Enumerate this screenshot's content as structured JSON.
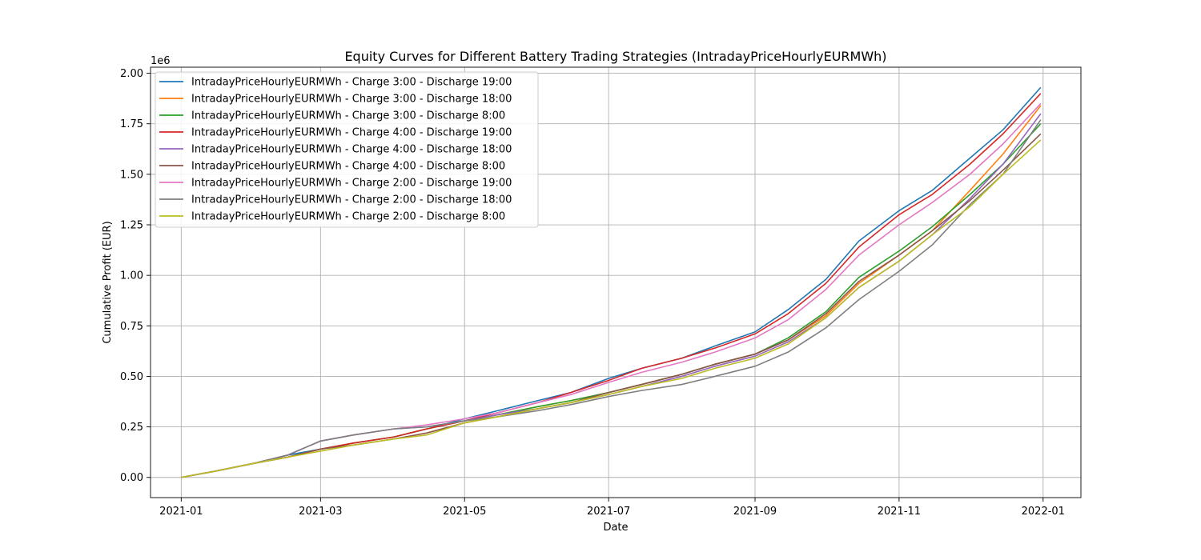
{
  "chart_data": {
    "type": "line",
    "title": "Equity Curves for Different Battery Trading Strategies (IntradayPriceHourlyEURMWh)",
    "xlabel": "Date",
    "ylabel": "Cumulative Profit (EUR)",
    "y_multiplier": "1e6",
    "xlim": [
      "2020-12-19",
      "2022-01-17"
    ],
    "ylim": [
      -0.1,
      2.03
    ],
    "x_ticks": [
      "2021-01",
      "2021-03",
      "2021-05",
      "2021-07",
      "2021-09",
      "2021-11",
      "2022-01"
    ],
    "y_ticks": [
      "0.00",
      "0.25",
      "0.50",
      "0.75",
      "1.00",
      "1.25",
      "1.50",
      "1.75",
      "2.00"
    ],
    "grid": true,
    "legend_position": "top-left",
    "x": [
      "2021-01-01",
      "2021-01-15",
      "2021-02-01",
      "2021-02-15",
      "2021-03-01",
      "2021-03-15",
      "2021-04-01",
      "2021-04-15",
      "2021-05-01",
      "2021-05-15",
      "2021-06-01",
      "2021-06-15",
      "2021-07-01",
      "2021-07-15",
      "2021-08-01",
      "2021-08-15",
      "2021-09-01",
      "2021-09-15",
      "2021-10-01",
      "2021-10-15",
      "2021-11-01",
      "2021-11-15",
      "2021-12-01",
      "2021-12-15",
      "2021-12-31"
    ],
    "series": [
      {
        "name": "IntradayPriceHourlyEURMWh - Charge 3:00 - Discharge 19:00",
        "color": "#1f77b4",
        "values": [
          0,
          0.03,
          0.07,
          0.11,
          0.14,
          0.17,
          0.2,
          0.24,
          0.29,
          0.33,
          0.38,
          0.42,
          0.49,
          0.54,
          0.59,
          0.65,
          0.72,
          0.83,
          0.98,
          1.17,
          1.32,
          1.42,
          1.58,
          1.72,
          1.93
        ]
      },
      {
        "name": "IntradayPriceHourlyEURMWh - Charge 3:00 - Discharge 18:00",
        "color": "#ff7f0e",
        "values": [
          0,
          0.03,
          0.07,
          0.1,
          0.14,
          0.17,
          0.2,
          0.24,
          0.28,
          0.31,
          0.35,
          0.38,
          0.42,
          0.46,
          0.51,
          0.56,
          0.61,
          0.68,
          0.8,
          0.96,
          1.1,
          1.22,
          1.42,
          1.6,
          1.84
        ]
      },
      {
        "name": "IntradayPriceHourlyEURMWh - Charge 3:00 - Discharge 8:00",
        "color": "#2ca02c",
        "values": [
          0,
          0.03,
          0.07,
          0.1,
          0.14,
          0.17,
          0.2,
          0.24,
          0.28,
          0.31,
          0.35,
          0.38,
          0.42,
          0.46,
          0.51,
          0.56,
          0.61,
          0.69,
          0.82,
          0.99,
          1.12,
          1.24,
          1.4,
          1.55,
          1.75
        ]
      },
      {
        "name": "IntradayPriceHourlyEURMWh - Charge 4:00 - Discharge 19:00",
        "color": "#d62728",
        "values": [
          0,
          0.03,
          0.07,
          0.1,
          0.14,
          0.17,
          0.2,
          0.24,
          0.28,
          0.32,
          0.37,
          0.42,
          0.48,
          0.54,
          0.59,
          0.64,
          0.71,
          0.81,
          0.96,
          1.14,
          1.3,
          1.4,
          1.55,
          1.7,
          1.9
        ]
      },
      {
        "name": "IntradayPriceHourlyEURMWh - Charge 4:00 - Discharge 18:00",
        "color": "#9467bd",
        "values": [
          0,
          0.03,
          0.07,
          0.11,
          0.18,
          0.21,
          0.24,
          0.25,
          0.28,
          0.31,
          0.34,
          0.37,
          0.41,
          0.45,
          0.5,
          0.55,
          0.6,
          0.67,
          0.79,
          0.94,
          1.07,
          1.2,
          1.38,
          1.55,
          1.8
        ]
      },
      {
        "name": "IntradayPriceHourlyEURMWh - Charge 4:00 - Discharge 8:00",
        "color": "#8c564b",
        "values": [
          0,
          0.03,
          0.07,
          0.1,
          0.14,
          0.16,
          0.19,
          0.22,
          0.27,
          0.3,
          0.34,
          0.37,
          0.42,
          0.46,
          0.51,
          0.56,
          0.61,
          0.68,
          0.81,
          0.97,
          1.1,
          1.22,
          1.37,
          1.52,
          1.7
        ]
      },
      {
        "name": "IntradayPriceHourlyEURMWh - Charge 2:00 - Discharge 19:00",
        "color": "#e377c2",
        "values": [
          0,
          0.03,
          0.07,
          0.11,
          0.18,
          0.21,
          0.24,
          0.26,
          0.29,
          0.32,
          0.37,
          0.41,
          0.47,
          0.52,
          0.57,
          0.62,
          0.69,
          0.78,
          0.93,
          1.1,
          1.25,
          1.36,
          1.5,
          1.65,
          1.85
        ]
      },
      {
        "name": "IntradayPriceHourlyEURMWh - Charge 2:00 - Discharge 18:00",
        "color": "#7f7f7f",
        "values": [
          0,
          0.03,
          0.07,
          0.11,
          0.18,
          0.21,
          0.24,
          0.25,
          0.28,
          0.3,
          0.33,
          0.36,
          0.4,
          0.43,
          0.46,
          0.5,
          0.55,
          0.62,
          0.74,
          0.88,
          1.02,
          1.15,
          1.35,
          1.5,
          1.77
        ]
      },
      {
        "name": "IntradayPriceHourlyEURMWh - Charge 2:00 - Discharge 8:00",
        "color": "#bcbd22",
        "values": [
          0,
          0.03,
          0.07,
          0.1,
          0.13,
          0.16,
          0.19,
          0.21,
          0.27,
          0.3,
          0.34,
          0.37,
          0.41,
          0.45,
          0.49,
          0.54,
          0.59,
          0.66,
          0.79,
          0.94,
          1.07,
          1.2,
          1.34,
          1.5,
          1.67
        ]
      }
    ]
  }
}
